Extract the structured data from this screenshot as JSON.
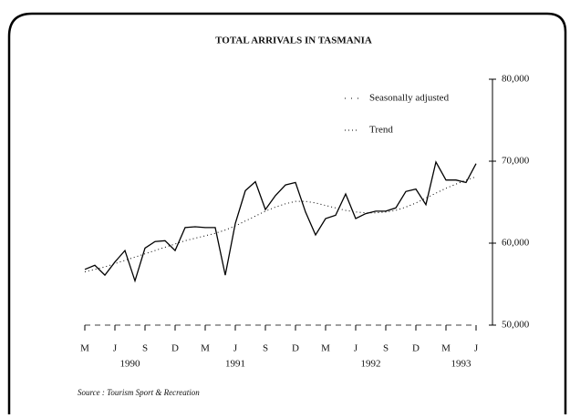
{
  "chart_data": {
    "type": "line",
    "title": "TOTAL ARRIVALS IN TASMANIA",
    "source": "Source : Tourism Sport & Recreation",
    "categories": [
      "M",
      null,
      null,
      "J",
      null,
      null,
      "S",
      null,
      null,
      "D",
      null,
      null,
      "M",
      null,
      null,
      "J",
      null,
      null,
      "S",
      null,
      null,
      "D",
      null,
      null,
      "M",
      null,
      null,
      "J",
      null,
      null,
      "S",
      null,
      null,
      "D",
      null,
      null,
      "M",
      null,
      null,
      "J"
    ],
    "years": [
      "1990",
      "1991",
      "1992",
      "1993"
    ],
    "series": [
      {
        "name": "Seasonally adjusted",
        "color": "#000000",
        "dash": "none",
        "values": [
          56800,
          57300,
          56100,
          57700,
          59100,
          55400,
          59400,
          60200,
          60300,
          59100,
          61900,
          62000,
          61900,
          61900,
          56100,
          62400,
          66400,
          67500,
          64100,
          65800,
          67100,
          67400,
          63800,
          61000,
          63000,
          63400,
          66000,
          63000,
          63600,
          63900,
          63900,
          64300,
          66300,
          66600,
          64700,
          69900,
          67700,
          67700,
          67400,
          69700
        ]
      },
      {
        "name": "Trend",
        "color": "#000000",
        "dash": "1 3",
        "values": [
          56500,
          56800,
          57100,
          57500,
          57900,
          58300,
          58700,
          59100,
          59500,
          59900,
          60300,
          60600,
          60900,
          61200,
          61600,
          62100,
          62700,
          63300,
          63900,
          64400,
          64800,
          65100,
          65100,
          64900,
          64600,
          64300,
          64000,
          63800,
          63700,
          63700,
          63800,
          64000,
          64400,
          64900,
          65500,
          66100,
          66700,
          67200,
          67700,
          68100
        ]
      }
    ],
    "ylim": [
      50000,
      80000
    ],
    "yticks": [
      {
        "value": 50000,
        "label": "50,000"
      },
      {
        "value": 60000,
        "label": "60,000"
      },
      {
        "value": 70000,
        "label": "70,000"
      },
      {
        "value": 80000,
        "label": "80,000"
      }
    ],
    "legend": "upper right"
  }
}
